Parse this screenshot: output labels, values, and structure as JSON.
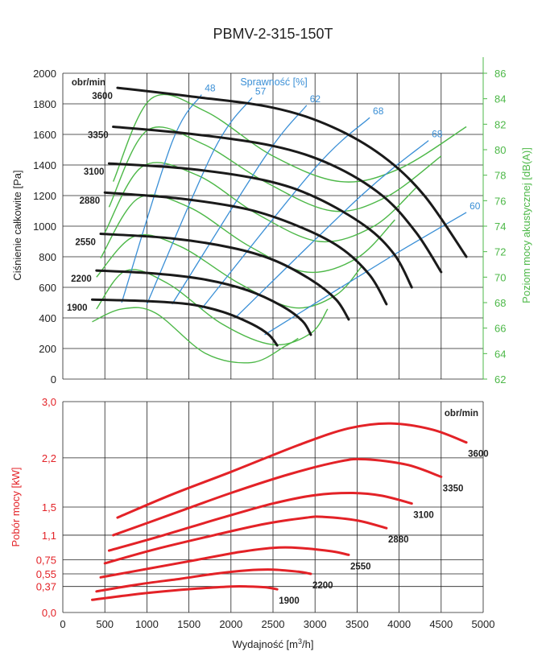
{
  "title": "PBMV-2-315-150T",
  "chart_data": [
    {
      "type": "line",
      "name": "pressure",
      "ylabel": "Ciśnienie całkowite [Pa]",
      "y2label": "Poziom mocy akustycznej [dB(A)]",
      "ylim": [
        0,
        2000
      ],
      "y2lim": [
        62,
        86
      ],
      "xlim": [
        0,
        5000
      ],
      "yticks": [
        "0",
        "200",
        "400",
        "600",
        "800",
        "1000",
        "1200",
        "1400",
        "1600",
        "1800",
        "2000"
      ],
      "y2ticks": [
        "62",
        "64",
        "66",
        "68",
        "70",
        "72",
        "74",
        "76",
        "78",
        "80",
        "82",
        "84",
        "86"
      ],
      "speed_header": "obr/min",
      "efficiency_header": "Sprawność [%]",
      "grid": true,
      "colors": {
        "speed": "#1a1a1a",
        "efficiency": "#3a8fd6",
        "noise": "#4db848"
      },
      "speed_curves": [
        {
          "name": "3600",
          "points": [
            [
              650,
              1905
            ],
            [
              1500,
              1850
            ],
            [
              2500,
              1775
            ],
            [
              3200,
              1650
            ],
            [
              3800,
              1460
            ],
            [
              4300,
              1200
            ],
            [
              4800,
              800
            ]
          ]
        },
        {
          "name": "3350",
          "points": [
            [
              600,
              1650
            ],
            [
              1500,
              1605
            ],
            [
              2500,
              1525
            ],
            [
              3200,
              1400
            ],
            [
              3800,
              1200
            ],
            [
              4200,
              960
            ],
            [
              4500,
              700
            ]
          ]
        },
        {
          "name": "3100",
          "points": [
            [
              550,
              1410
            ],
            [
              1500,
              1375
            ],
            [
              2400,
              1300
            ],
            [
              3000,
              1190
            ],
            [
              3600,
              1000
            ],
            [
              3950,
              810
            ],
            [
              4150,
              600
            ]
          ]
        },
        {
          "name": "2880",
          "points": [
            [
              500,
              1220
            ],
            [
              1400,
              1180
            ],
            [
              2200,
              1110
            ],
            [
              2800,
              1000
            ],
            [
              3300,
              860
            ],
            [
              3650,
              680
            ],
            [
              3850,
              490
            ]
          ]
        },
        {
          "name": "2550",
          "points": [
            [
              450,
              950
            ],
            [
              1300,
              920
            ],
            [
              2000,
              860
            ],
            [
              2500,
              780
            ],
            [
              2950,
              650
            ],
            [
              3250,
              520
            ],
            [
              3400,
              390
            ]
          ]
        },
        {
          "name": "2200",
          "points": [
            [
              400,
              710
            ],
            [
              1100,
              690
            ],
            [
              1700,
              650
            ],
            [
              2200,
              580
            ],
            [
              2600,
              480
            ],
            [
              2850,
              380
            ],
            [
              2950,
              290
            ]
          ]
        },
        {
          "name": "1900",
          "points": [
            [
              350,
              520
            ],
            [
              1000,
              510
            ],
            [
              1500,
              490
            ],
            [
              1900,
              440
            ],
            [
              2250,
              360
            ],
            [
              2450,
              290
            ],
            [
              2550,
              220
            ]
          ]
        }
      ],
      "efficiency_lines": [
        {
          "name": "48",
          "points": [
            [
              700,
              500
            ],
            [
              1300,
              1550
            ],
            [
              1650,
              1860
            ]
          ]
        },
        {
          "name": "57",
          "points": [
            [
              1000,
              490
            ],
            [
              1800,
              1500
            ],
            [
              2250,
              1840
            ]
          ]
        },
        {
          "name": "62",
          "points": [
            [
              1300,
              490
            ],
            [
              2400,
              1450
            ],
            [
              2900,
              1790
            ]
          ]
        },
        {
          "name": "68",
          "points": [
            [
              1650,
              460
            ],
            [
              3000,
              1380
            ],
            [
              3650,
              1710
            ]
          ]
        },
        {
          "name": "68",
          "points": [
            [
              2050,
              400
            ],
            [
              3550,
              1200
            ],
            [
              4350,
              1560
            ]
          ]
        },
        {
          "name": "60",
          "points": [
            [
              2400,
              290
            ],
            [
              3900,
              800
            ],
            [
              4800,
              1090
            ]
          ]
        }
      ],
      "noise_curves": [
        {
          "level": "3600",
          "points": [
            [
              600,
              77.5
            ],
            [
              1050,
              84
            ],
            [
              1700,
              83
            ],
            [
              2500,
              79.5
            ],
            [
              3300,
              77.5
            ],
            [
              4000,
              78.5
            ],
            [
              4800,
              81.8
            ]
          ]
        },
        {
          "level": "3350",
          "points": [
            [
              550,
              75.5
            ],
            [
              1000,
              81.5
            ],
            [
              1650,
              80.5
            ],
            [
              2400,
              77.5
            ],
            [
              3200,
              75.2
            ],
            [
              3850,
              76.3
            ],
            [
              4500,
              79.5
            ]
          ]
        },
        {
          "level": "3100",
          "points": [
            [
              500,
              73.5
            ],
            [
              950,
              78.7
            ],
            [
              1600,
              78
            ],
            [
              2300,
              75
            ],
            [
              3050,
              72.8
            ],
            [
              3700,
              74
            ],
            [
              4200,
              77
            ]
          ]
        },
        {
          "level": "2880",
          "points": [
            [
              450,
              71.5
            ],
            [
              900,
              76.2
            ],
            [
              1500,
              75.5
            ],
            [
              2200,
              72.5
            ],
            [
              2900,
              70.4
            ],
            [
              3500,
              71.5
            ],
            [
              3950,
              74.5
            ]
          ]
        },
        {
          "level": "2550",
          "points": [
            [
              400,
              70
            ],
            [
              850,
              73.2
            ],
            [
              1400,
              72.4
            ],
            [
              2100,
              69.5
            ],
            [
              2750,
              67.6
            ],
            [
              3250,
              68.6
            ],
            [
              3550,
              70.8
            ]
          ]
        },
        {
          "level": "2200",
          "points": [
            [
              400,
              67.5
            ],
            [
              750,
              70.5
            ],
            [
              1250,
              69.5
            ],
            [
              1900,
              66.3
            ],
            [
              2500,
              64.7
            ],
            [
              2950,
              65.6
            ],
            [
              3150,
              67.5
            ]
          ]
        },
        {
          "level": "1900",
          "points": [
            [
              350,
              66.5
            ],
            [
              700,
              67.5
            ],
            [
              1100,
              67.2
            ],
            [
              1700,
              64
            ],
            [
              2250,
              63.3
            ],
            [
              2650,
              64.6
            ],
            [
              2800,
              65.2
            ]
          ]
        }
      ]
    },
    {
      "type": "line",
      "name": "power",
      "ylabel": "Pobór mocy [kW]",
      "xlabel_prefix": "Wydajność [m",
      "xlabel_sup": "3",
      "xlabel_suffix": "/h]",
      "xlim": [
        0,
        5000
      ],
      "ylim": [
        0,
        3.0
      ],
      "xticks": [
        "0",
        "500",
        "1000",
        "1500",
        "2000",
        "2500",
        "3000",
        "3500",
        "4000",
        "4500",
        "5000"
      ],
      "yticks": [
        {
          "v": 0,
          "label": "0,0"
        },
        {
          "v": 0.37,
          "label": "0,37"
        },
        {
          "v": 0.55,
          "label": "0,55"
        },
        {
          "v": 0.75,
          "label": "0,75"
        },
        {
          "v": 1.1,
          "label": "1,1"
        },
        {
          "v": 1.5,
          "label": "1,5"
        },
        {
          "v": 2.2,
          "label": "2,2"
        },
        {
          "v": 3.0,
          "label": "3,0"
        }
      ],
      "speed_header": "obr/min",
      "grid": true,
      "color": "#e32227",
      "series": [
        {
          "name": "3600",
          "points": [
            [
              650,
              1.35
            ],
            [
              1300,
              1.68
            ],
            [
              2000,
              2.0
            ],
            [
              2800,
              2.38
            ],
            [
              3400,
              2.62
            ],
            [
              3900,
              2.69
            ],
            [
              4400,
              2.6
            ],
            [
              4800,
              2.42
            ]
          ]
        },
        {
          "name": "3350",
          "points": [
            [
              600,
              1.1
            ],
            [
              1300,
              1.4
            ],
            [
              2000,
              1.7
            ],
            [
              2700,
              1.97
            ],
            [
              3300,
              2.15
            ],
            [
              3600,
              2.18
            ],
            [
              4100,
              2.1
            ],
            [
              4500,
              1.93
            ]
          ]
        },
        {
          "name": "3100",
          "points": [
            [
              550,
              0.88
            ],
            [
              1200,
              1.1
            ],
            [
              1900,
              1.35
            ],
            [
              2500,
              1.55
            ],
            [
              3000,
              1.67
            ],
            [
              3450,
              1.7
            ],
            [
              3800,
              1.66
            ],
            [
              4150,
              1.55
            ]
          ]
        },
        {
          "name": "2880",
          "points": [
            [
              500,
              0.7
            ],
            [
              1100,
              0.9
            ],
            [
              1800,
              1.1
            ],
            [
              2400,
              1.26
            ],
            [
              2900,
              1.35
            ],
            [
              3100,
              1.36
            ],
            [
              3500,
              1.31
            ],
            [
              3850,
              1.2
            ]
          ]
        },
        {
          "name": "2550",
          "points": [
            [
              450,
              0.5
            ],
            [
              1000,
              0.62
            ],
            [
              1600,
              0.75
            ],
            [
              2100,
              0.86
            ],
            [
              2500,
              0.92
            ],
            [
              2800,
              0.92
            ],
            [
              3200,
              0.87
            ],
            [
              3400,
              0.82
            ]
          ]
        },
        {
          "name": "2200",
          "points": [
            [
              400,
              0.3
            ],
            [
              900,
              0.4
            ],
            [
              1400,
              0.48
            ],
            [
              1800,
              0.55
            ],
            [
              2200,
              0.6
            ],
            [
              2500,
              0.61
            ],
            [
              2800,
              0.58
            ],
            [
              2950,
              0.55
            ]
          ]
        },
        {
          "name": "1900",
          "points": [
            [
              350,
              0.18
            ],
            [
              800,
              0.25
            ],
            [
              1200,
              0.3
            ],
            [
              1600,
              0.34
            ],
            [
              2000,
              0.37
            ],
            [
              2200,
              0.37
            ],
            [
              2400,
              0.36
            ],
            [
              2550,
              0.33
            ]
          ]
        }
      ]
    }
  ]
}
